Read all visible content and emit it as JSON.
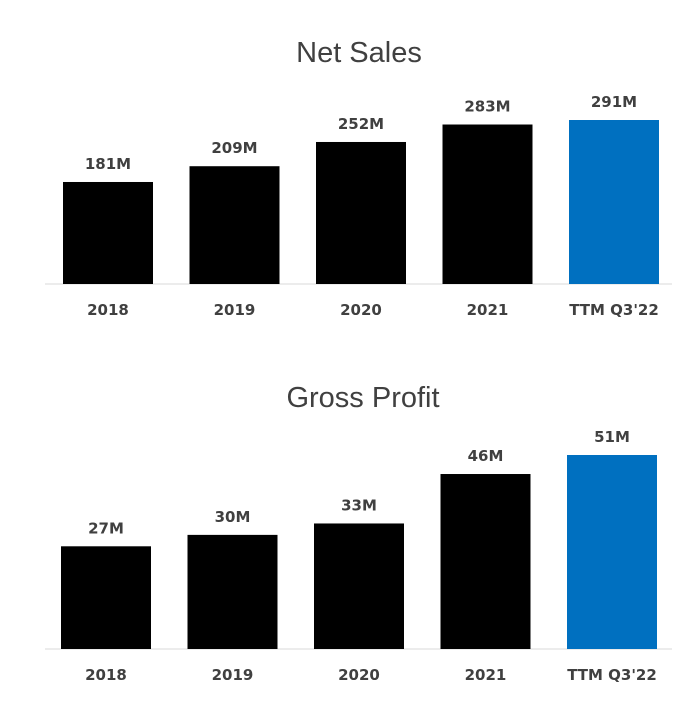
{
  "chart_data": [
    {
      "type": "bar",
      "title": "Net Sales",
      "categories": [
        "2018",
        "2019",
        "2020",
        "2021",
        "TTM Q3'22"
      ],
      "values": [
        181,
        209,
        252,
        283,
        291
      ],
      "value_labels": [
        "181M",
        "209M",
        "252M",
        "283M",
        "291M"
      ],
      "units": "M",
      "highlight_index": 4,
      "colors": {
        "default": "#000000",
        "highlight": "#0070C0"
      },
      "xlabel": "",
      "ylabel": "",
      "ylim": [
        0,
        291
      ],
      "grid": false
    },
    {
      "type": "bar",
      "title": "Gross Profit",
      "categories": [
        "2018",
        "2019",
        "2020",
        "2021",
        "TTM Q3'22"
      ],
      "values": [
        27,
        30,
        33,
        46,
        51
      ],
      "value_labels": [
        "27M",
        "30M",
        "33M",
        "46M",
        "51M"
      ],
      "units": "M",
      "highlight_index": 4,
      "colors": {
        "default": "#000000",
        "highlight": "#0070C0"
      },
      "xlabel": "",
      "ylabel": "",
      "ylim": [
        0,
        51
      ],
      "grid": false
    }
  ]
}
